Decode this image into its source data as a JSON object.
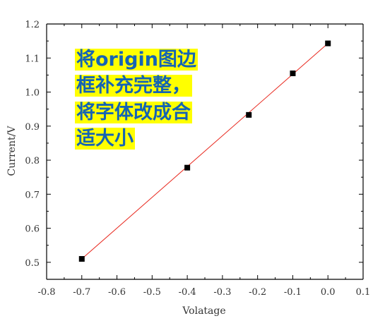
{
  "chart_data": {
    "type": "scatter",
    "title": "",
    "xlabel": "Volatage",
    "ylabel": "Current/V",
    "xlim": [
      -0.8,
      0.1
    ],
    "ylim": [
      0.45,
      1.2
    ],
    "xticks": [
      "-0.8",
      "-0.7",
      "-0.6",
      "-0.5",
      "-0.4",
      "-0.3",
      "-0.2",
      "-0.1",
      "0.0",
      "0.1"
    ],
    "yticks": [
      "0.5",
      "0.6",
      "0.7",
      "0.8",
      "0.9",
      "1.0",
      "1.1",
      "1.2"
    ],
    "grid": false,
    "series": [
      {
        "points": [
          {
            "x": -0.7,
            "y": 0.51
          },
          {
            "x": -0.4,
            "y": 0.778
          },
          {
            "x": -0.225,
            "y": 0.933
          },
          {
            "x": -0.1,
            "y": 1.055
          },
          {
            "x": 0.0,
            "y": 1.143
          }
        ],
        "marker_color": "#000000"
      }
    ],
    "fit_line": {
      "x": [
        -0.7,
        0.0
      ],
      "y": [
        0.51,
        1.143
      ],
      "color": "#e8281e"
    },
    "annotation": {
      "text": "将origin图边\n框补充完整，\n将字体改成合\n适大小",
      "text_color": "#1564b4",
      "highlight_color": "#ffff00"
    }
  }
}
